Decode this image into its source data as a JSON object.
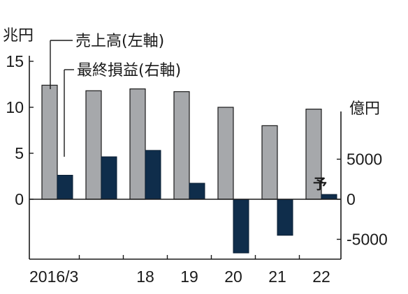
{
  "chart_data": {
    "type": "bar",
    "categories": [
      "2016/3",
      "",
      "18",
      "19",
      "20",
      "21",
      "22"
    ],
    "series": [
      {
        "name": "売上高(左軸)",
        "axis": "left",
        "color": "#a6a8ab",
        "values": [
          12.4,
          11.8,
          12.0,
          11.7,
          10.0,
          8.0,
          9.8
        ]
      },
      {
        "name": "最終損益(右軸)",
        "axis": "right",
        "color": "#0f2d4b",
        "values": [
          3000,
          5300,
          6100,
          2000,
          -6700,
          -4500,
          600
        ]
      }
    ],
    "left_axis": {
      "unit": "兆円",
      "ticks": [
        "0",
        "5",
        "10",
        "15"
      ],
      "ylim": [
        -6.5,
        17.5
      ]
    },
    "right_axis": {
      "unit": "億円",
      "ticks": [
        "-5000",
        "0",
        "5000"
      ],
      "ylim": [
        -7000,
        8000
      ]
    },
    "annotation": "予",
    "legend_placement": "top-left",
    "grid": false
  }
}
